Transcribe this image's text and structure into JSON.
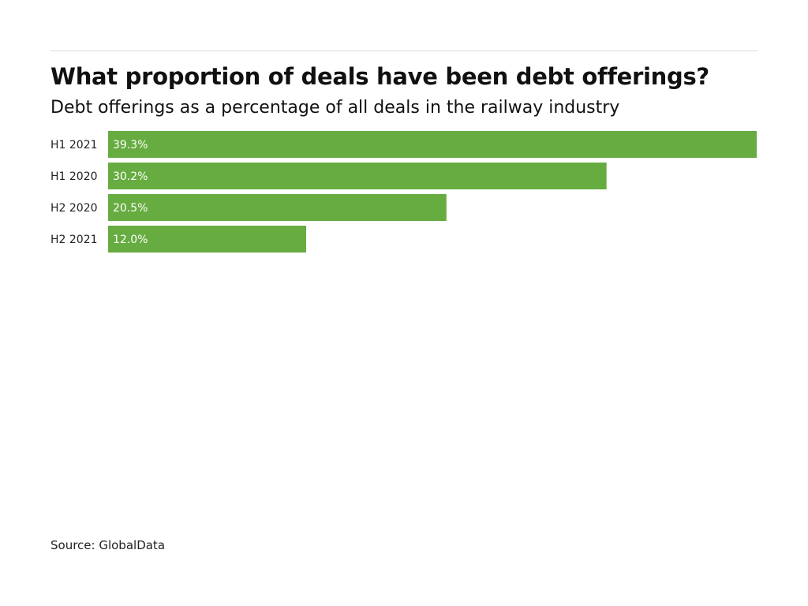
{
  "chart_data": {
    "type": "bar",
    "orientation": "horizontal",
    "title": "What proportion of deals have been debt offerings?",
    "subtitle": "Debt offerings as a percentage of all deals in the railway industry",
    "categories": [
      "H1 2021",
      "H1 2020",
      "H2 2020",
      "H2 2021"
    ],
    "values": [
      39.3,
      30.2,
      20.5,
      12.0
    ],
    "value_labels": [
      "39.3%",
      "30.2%",
      "20.5%",
      "12.0%"
    ],
    "unit": "%",
    "bar_color": "#66ac40",
    "value_label_color": "#ffffff",
    "grid": false,
    "legend": "none",
    "xlim": [
      0,
      39.3
    ]
  },
  "source": "Source: GlobalData"
}
